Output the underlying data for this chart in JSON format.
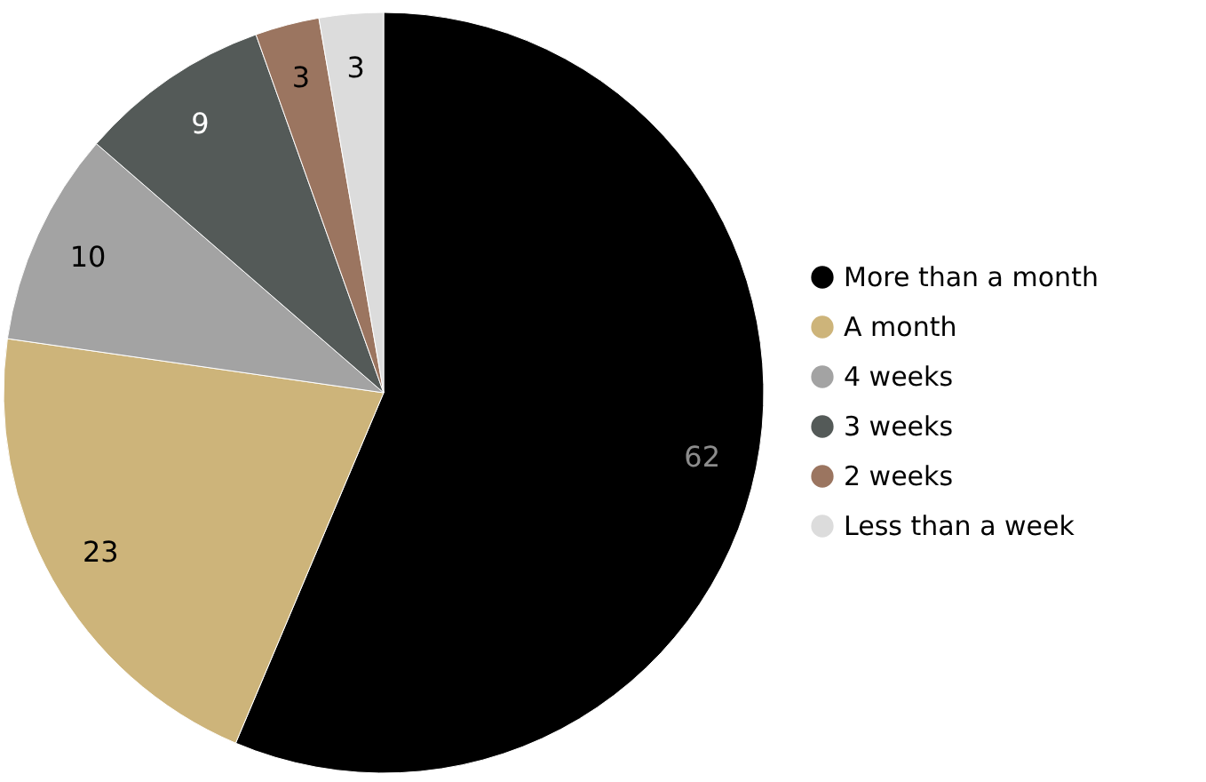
{
  "chart_data": {
    "type": "pie",
    "categories": [
      "More than a month",
      "A month",
      "4 weeks",
      "3 weeks",
      "2 weeks",
      "Less than a week"
    ],
    "values": [
      62,
      23,
      10,
      9,
      3,
      3
    ],
    "colors": [
      "#000000",
      "#cdb47a",
      "#a3a3a3",
      "#545a58",
      "#9b7560",
      "#dcdcdc"
    ],
    "data_labels": true,
    "legend": "right"
  }
}
